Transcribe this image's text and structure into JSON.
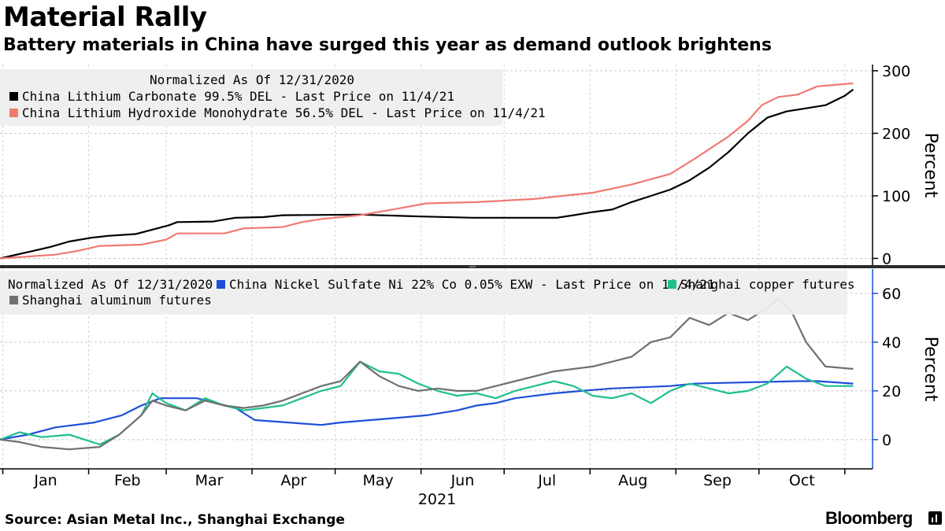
{
  "header": {
    "title": "Material Rally",
    "subtitle": "Battery materials in China have surged this year as demand outlook brightens"
  },
  "footer": {
    "source": "Source: Asian Metal Inc., Shanghai Exchange",
    "brand": "Bloomberg"
  },
  "chart_data": [
    {
      "type": "line",
      "legend_header": "Normalized As Of 12/31/2020",
      "ylabel": "Percent",
      "ylim": [
        -12,
        310
      ],
      "yticks": [
        0,
        100,
        200,
        300
      ],
      "x_axis": {
        "months": [
          "Jan",
          "Feb",
          "Mar",
          "Apr",
          "May",
          "Jun",
          "Jul",
          "Aug",
          "Sep",
          "Oct"
        ],
        "year": "2021"
      },
      "series": [
        {
          "name": "China Lithium Carbonate 99.5% DEL - Last Price on 11/4/21",
          "color": "#000000",
          "points": [
            [
              "2020-12-31",
              0
            ],
            [
              "2021-01-05",
              5
            ],
            [
              "2021-01-12",
              12
            ],
            [
              "2021-01-18",
              18
            ],
            [
              "2021-01-25",
              27
            ],
            [
              "2021-02-02",
              33
            ],
            [
              "2021-02-08",
              36
            ],
            [
              "2021-02-18",
              39
            ],
            [
              "2021-02-24",
              46
            ],
            [
              "2021-03-02",
              53
            ],
            [
              "2021-03-05",
              58
            ],
            [
              "2021-03-18",
              59
            ],
            [
              "2021-03-26",
              65
            ],
            [
              "2021-04-05",
              66
            ],
            [
              "2021-04-12",
              69
            ],
            [
              "2021-05-10",
              70
            ],
            [
              "2021-06-01",
              67
            ],
            [
              "2021-06-20",
              65
            ],
            [
              "2021-07-20",
              65
            ],
            [
              "2021-07-26",
              69
            ],
            [
              "2021-08-02",
              74
            ],
            [
              "2021-08-09",
              78
            ],
            [
              "2021-08-16",
              90
            ],
            [
              "2021-08-23",
              100
            ],
            [
              "2021-08-30",
              110
            ],
            [
              "2021-09-06",
              125
            ],
            [
              "2021-09-13",
              145
            ],
            [
              "2021-09-20",
              170
            ],
            [
              "2021-09-27",
              200
            ],
            [
              "2021-10-04",
              225
            ],
            [
              "2021-10-11",
              235
            ],
            [
              "2021-10-18",
              240
            ],
            [
              "2021-10-25",
              245
            ],
            [
              "2021-11-01",
              260
            ],
            [
              "2021-11-04",
              270
            ]
          ]
        },
        {
          "name": "China Lithium Hydroxide Monohydrate 56.5% DEL - Last Price on 11/4/21",
          "color": "#f07a72",
          "points": [
            [
              "2020-12-31",
              0
            ],
            [
              "2021-01-10",
              3
            ],
            [
              "2021-01-20",
              6
            ],
            [
              "2021-01-28",
              12
            ],
            [
              "2021-02-05",
              20
            ],
            [
              "2021-02-20",
              22
            ],
            [
              "2021-03-01",
              30
            ],
            [
              "2021-03-05",
              40
            ],
            [
              "2021-03-22",
              40
            ],
            [
              "2021-03-29",
              48
            ],
            [
              "2021-04-12",
              50
            ],
            [
              "2021-04-19",
              58
            ],
            [
              "2021-04-26",
              63
            ],
            [
              "2021-05-10",
              69
            ],
            [
              "2021-05-24",
              80
            ],
            [
              "2021-06-03",
              88
            ],
            [
              "2021-06-21",
              90
            ],
            [
              "2021-07-12",
              95
            ],
            [
              "2021-07-22",
              100
            ],
            [
              "2021-08-02",
              105
            ],
            [
              "2021-08-16",
              118
            ],
            [
              "2021-08-30",
              135
            ],
            [
              "2021-09-08",
              160
            ],
            [
              "2021-09-20",
              195
            ],
            [
              "2021-09-27",
              220
            ],
            [
              "2021-10-02",
              245
            ],
            [
              "2021-10-08",
              258
            ],
            [
              "2021-10-15",
              262
            ],
            [
              "2021-10-22",
              275
            ],
            [
              "2021-11-04",
              280
            ]
          ]
        }
      ]
    },
    {
      "type": "line",
      "legend_header": "Normalized As Of 12/31/2020",
      "ylabel": "Percent",
      "ylim": [
        -12,
        70
      ],
      "yticks": [
        0,
        20,
        40,
        60
      ],
      "series": [
        {
          "name": "China Nickel Sulfate Ni 22% Co 0.05% EXW - Last Price on 11/4/21",
          "color": "#1f4fd8",
          "points": [
            [
              "2020-12-31",
              0
            ],
            [
              "2021-01-10",
              2
            ],
            [
              "2021-01-20",
              5
            ],
            [
              "2021-02-03",
              7
            ],
            [
              "2021-02-13",
              10
            ],
            [
              "2021-02-20",
              14
            ],
            [
              "2021-02-27",
              17
            ],
            [
              "2021-03-12",
              17
            ],
            [
              "2021-03-19",
              15
            ],
            [
              "2021-03-26",
              13
            ],
            [
              "2021-04-02",
              8
            ],
            [
              "2021-04-26",
              6
            ],
            [
              "2021-05-03",
              7
            ],
            [
              "2021-05-24",
              9
            ],
            [
              "2021-06-03",
              10
            ],
            [
              "2021-06-14",
              12
            ],
            [
              "2021-06-21",
              14
            ],
            [
              "2021-06-28",
              15
            ],
            [
              "2021-07-05",
              17
            ],
            [
              "2021-07-19",
              19
            ],
            [
              "2021-07-29",
              20
            ],
            [
              "2021-08-09",
              21
            ],
            [
              "2021-08-30",
              22
            ],
            [
              "2021-09-08",
              23
            ],
            [
              "2021-10-15",
              24
            ],
            [
              "2021-10-22",
              24
            ],
            [
              "2021-11-04",
              23
            ]
          ]
        },
        {
          "name": "Shanghai copper futures",
          "color": "#1fbf8f",
          "points": [
            [
              "2020-12-31",
              0
            ],
            [
              "2021-01-07",
              3
            ],
            [
              "2021-01-15",
              1
            ],
            [
              "2021-01-25",
              2
            ],
            [
              "2021-02-05",
              -2
            ],
            [
              "2021-02-12",
              2
            ],
            [
              "2021-02-20",
              10
            ],
            [
              "2021-02-24",
              19
            ],
            [
              "2021-03-01",
              15
            ],
            [
              "2021-03-08",
              12
            ],
            [
              "2021-03-15",
              17
            ],
            [
              "2021-03-22",
              14
            ],
            [
              "2021-03-29",
              12
            ],
            [
              "2021-04-05",
              13
            ],
            [
              "2021-04-12",
              14
            ],
            [
              "2021-04-19",
              17
            ],
            [
              "2021-04-26",
              20
            ],
            [
              "2021-05-03",
              22
            ],
            [
              "2021-05-10",
              32
            ],
            [
              "2021-05-17",
              28
            ],
            [
              "2021-05-24",
              27
            ],
            [
              "2021-05-31",
              23
            ],
            [
              "2021-06-07",
              20
            ],
            [
              "2021-06-14",
              18
            ],
            [
              "2021-06-21",
              19
            ],
            [
              "2021-06-28",
              17
            ],
            [
              "2021-07-05",
              20
            ],
            [
              "2021-07-12",
              22
            ],
            [
              "2021-07-19",
              24
            ],
            [
              "2021-07-26",
              22
            ],
            [
              "2021-08-02",
              18
            ],
            [
              "2021-08-09",
              17
            ],
            [
              "2021-08-16",
              19
            ],
            [
              "2021-08-23",
              15
            ],
            [
              "2021-08-30",
              20
            ],
            [
              "2021-09-06",
              23
            ],
            [
              "2021-09-13",
              21
            ],
            [
              "2021-09-20",
              19
            ],
            [
              "2021-09-27",
              20
            ],
            [
              "2021-10-04",
              23
            ],
            [
              "2021-10-11",
              30
            ],
            [
              "2021-10-18",
              25
            ],
            [
              "2021-10-25",
              22
            ],
            [
              "2021-11-04",
              22
            ]
          ]
        },
        {
          "name": "Shanghai aluminum futures",
          "color": "#707070",
          "points": [
            [
              "2020-12-31",
              0
            ],
            [
              "2021-01-07",
              -1
            ],
            [
              "2021-01-15",
              -3
            ],
            [
              "2021-01-25",
              -4
            ],
            [
              "2021-02-05",
              -3
            ],
            [
              "2021-02-12",
              2
            ],
            [
              "2021-02-20",
              10
            ],
            [
              "2021-02-24",
              16
            ],
            [
              "2021-03-01",
              14
            ],
            [
              "2021-03-08",
              12
            ],
            [
              "2021-03-15",
              16
            ],
            [
              "2021-03-22",
              14
            ],
            [
              "2021-03-29",
              13
            ],
            [
              "2021-04-05",
              14
            ],
            [
              "2021-04-12",
              16
            ],
            [
              "2021-04-19",
              19
            ],
            [
              "2021-04-26",
              22
            ],
            [
              "2021-05-03",
              24
            ],
            [
              "2021-05-10",
              32
            ],
            [
              "2021-05-17",
              26
            ],
            [
              "2021-05-24",
              22
            ],
            [
              "2021-05-31",
              20
            ],
            [
              "2021-06-07",
              21
            ],
            [
              "2021-06-14",
              20
            ],
            [
              "2021-06-21",
              20
            ],
            [
              "2021-06-28",
              22
            ],
            [
              "2021-07-05",
              24
            ],
            [
              "2021-07-12",
              26
            ],
            [
              "2021-07-19",
              28
            ],
            [
              "2021-07-26",
              29
            ],
            [
              "2021-08-02",
              30
            ],
            [
              "2021-08-09",
              32
            ],
            [
              "2021-08-16",
              34
            ],
            [
              "2021-08-23",
              40
            ],
            [
              "2021-08-30",
              42
            ],
            [
              "2021-09-06",
              50
            ],
            [
              "2021-09-13",
              47
            ],
            [
              "2021-09-20",
              52
            ],
            [
              "2021-09-27",
              49
            ],
            [
              "2021-10-04",
              54
            ],
            [
              "2021-10-08",
              58
            ],
            [
              "2021-10-13",
              52
            ],
            [
              "2021-10-18",
              40
            ],
            [
              "2021-10-25",
              30
            ],
            [
              "2021-11-04",
              29
            ]
          ]
        }
      ]
    }
  ]
}
